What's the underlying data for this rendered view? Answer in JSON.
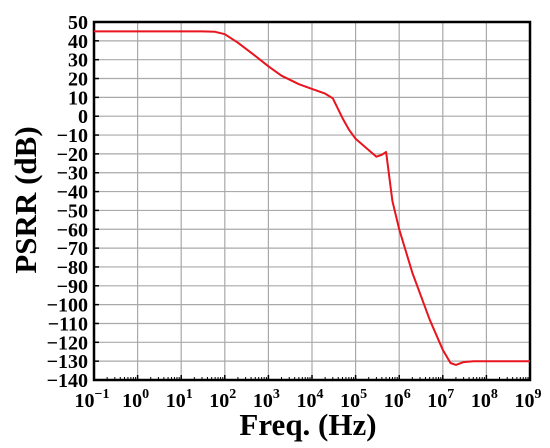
{
  "chart_data": {
    "type": "line",
    "title": "",
    "xlabel": "Freq. (Hz)",
    "ylabel": "PSRR (dB)",
    "x_scale": "log",
    "xlim": [
      0.1,
      1000000000
    ],
    "ylim": [
      -140,
      50
    ],
    "x_ticks": [
      {
        "base": "10",
        "exp": "−1",
        "value": 0.1
      },
      {
        "base": "10",
        "exp": "0",
        "value": 1
      },
      {
        "base": "10",
        "exp": "1",
        "value": 10
      },
      {
        "base": "10",
        "exp": "2",
        "value": 100
      },
      {
        "base": "10",
        "exp": "3",
        "value": 1000
      },
      {
        "base": "10",
        "exp": "4",
        "value": 10000
      },
      {
        "base": "10",
        "exp": "5",
        "value": 100000
      },
      {
        "base": "10",
        "exp": "6",
        "value": 1000000
      },
      {
        "base": "10",
        "exp": "7",
        "value": 10000000
      },
      {
        "base": "10",
        "exp": "8",
        "value": 100000000
      },
      {
        "base": "10",
        "exp": "9",
        "value": 1000000000
      }
    ],
    "y_ticks": [
      50,
      40,
      30,
      20,
      10,
      0,
      -10,
      -20,
      -30,
      -40,
      -50,
      -60,
      -70,
      -80,
      -90,
      -100,
      -110,
      -120,
      -130,
      -140
    ],
    "grid": true,
    "series": [
      {
        "color": "#e8141e",
        "x": [
          0.1,
          1,
          10,
          30,
          60,
          100,
          200,
          500,
          1000,
          2000,
          5000,
          10000,
          20000,
          30000,
          50000,
          70000,
          100000,
          200000,
          300000,
          400000,
          500000,
          700000,
          1000000,
          2000000,
          5000000,
          10000000,
          15000000,
          20000000,
          30000000,
          50000000,
          100000000,
          1000000000
        ],
        "y": [
          45,
          45,
          45,
          45,
          44.8,
          43.5,
          39,
          32,
          26.5,
          21.5,
          17,
          14.5,
          12,
          9.5,
          -1,
          -7,
          -12,
          -18,
          -21.5,
          -20.5,
          -19,
          -45,
          -60,
          -83,
          -108,
          -124,
          -131,
          -132,
          -130.5,
          -130,
          -130,
          -130
        ]
      }
    ]
  }
}
